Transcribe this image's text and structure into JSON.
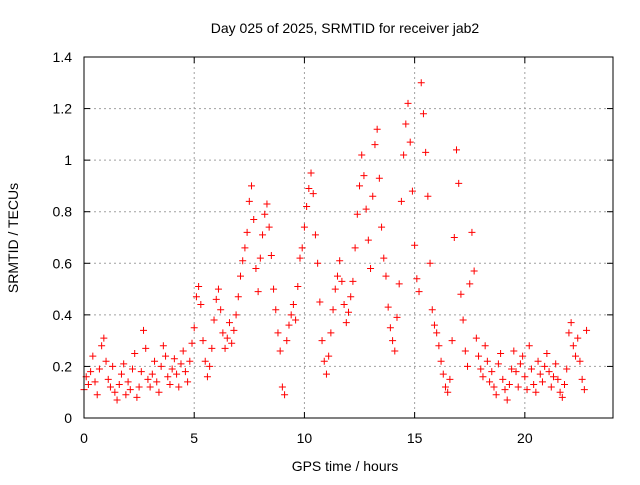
{
  "chart_data": {
    "type": "scatter",
    "title": "Day 025 of 2025, SRMTID for receiver jab2",
    "xlabel": "GPS time / hours",
    "ylabel": "SRMTID / TECUs",
    "xlim": [
      0,
      24
    ],
    "ylim": [
      0,
      1.4
    ],
    "xticks": [
      0,
      5,
      10,
      15,
      20
    ],
    "xtick_labels": [
      "0",
      "5",
      "10",
      "15",
      "20"
    ],
    "yticks": [
      0,
      0.2,
      0.4,
      0.6,
      0.8,
      1.0,
      1.2,
      1.4
    ],
    "ytick_labels": [
      "0",
      "0.2",
      "0.4",
      "0.6",
      "0.8",
      "1",
      "1.2",
      "1.4"
    ],
    "grid": true,
    "marker": "+",
    "color": "#ff0000",
    "series": [
      {
        "name": "SRMTID",
        "points": [
          [
            0.0,
            0.11
          ],
          [
            0.1,
            0.16
          ],
          [
            0.2,
            0.13
          ],
          [
            0.3,
            0.18
          ],
          [
            0.4,
            0.24
          ],
          [
            0.5,
            0.14
          ],
          [
            0.6,
            0.09
          ],
          [
            0.7,
            0.19
          ],
          [
            0.8,
            0.28
          ],
          [
            0.9,
            0.31
          ],
          [
            1.0,
            0.22
          ],
          [
            1.1,
            0.15
          ],
          [
            1.2,
            0.12
          ],
          [
            1.3,
            0.2
          ],
          [
            1.4,
            0.1
          ],
          [
            1.5,
            0.07
          ],
          [
            1.6,
            0.13
          ],
          [
            1.7,
            0.17
          ],
          [
            1.8,
            0.21
          ],
          [
            1.9,
            0.09
          ],
          [
            2.0,
            0.14
          ],
          [
            2.1,
            0.11
          ],
          [
            2.2,
            0.19
          ],
          [
            2.3,
            0.25
          ],
          [
            2.4,
            0.08
          ],
          [
            2.5,
            0.12
          ],
          [
            2.6,
            0.18
          ],
          [
            2.7,
            0.34
          ],
          [
            2.8,
            0.27
          ],
          [
            2.9,
            0.15
          ],
          [
            3.0,
            0.12
          ],
          [
            3.1,
            0.17
          ],
          [
            3.2,
            0.22
          ],
          [
            3.3,
            0.14
          ],
          [
            3.4,
            0.1
          ],
          [
            3.5,
            0.2
          ],
          [
            3.6,
            0.28
          ],
          [
            3.7,
            0.24
          ],
          [
            3.8,
            0.16
          ],
          [
            3.9,
            0.13
          ],
          [
            4.0,
            0.19
          ],
          [
            4.1,
            0.23
          ],
          [
            4.2,
            0.17
          ],
          [
            4.3,
            0.12
          ],
          [
            4.4,
            0.21
          ],
          [
            4.5,
            0.26
          ],
          [
            4.6,
            0.18
          ],
          [
            4.7,
            0.14
          ],
          [
            4.8,
            0.22
          ],
          [
            4.9,
            0.29
          ],
          [
            5.0,
            0.35
          ],
          [
            5.1,
            0.47
          ],
          [
            5.2,
            0.51
          ],
          [
            5.3,
            0.44
          ],
          [
            5.4,
            0.3
          ],
          [
            5.5,
            0.22
          ],
          [
            5.6,
            0.16
          ],
          [
            5.7,
            0.2
          ],
          [
            5.8,
            0.27
          ],
          [
            5.9,
            0.38
          ],
          [
            6.0,
            0.46
          ],
          [
            6.1,
            0.5
          ],
          [
            6.2,
            0.42
          ],
          [
            6.3,
            0.33
          ],
          [
            6.4,
            0.27
          ],
          [
            6.5,
            0.31
          ],
          [
            6.6,
            0.37
          ],
          [
            6.7,
            0.29
          ],
          [
            6.8,
            0.34
          ],
          [
            6.9,
            0.4
          ],
          [
            7.0,
            0.47
          ],
          [
            7.1,
            0.55
          ],
          [
            7.2,
            0.61
          ],
          [
            7.3,
            0.66
          ],
          [
            7.4,
            0.72
          ],
          [
            7.5,
            0.84
          ],
          [
            7.6,
            0.9
          ],
          [
            7.7,
            0.77
          ],
          [
            7.8,
            0.58
          ],
          [
            7.9,
            0.49
          ],
          [
            8.0,
            0.62
          ],
          [
            8.1,
            0.71
          ],
          [
            8.2,
            0.79
          ],
          [
            8.3,
            0.83
          ],
          [
            8.4,
            0.74
          ],
          [
            8.5,
            0.63
          ],
          [
            8.6,
            0.5
          ],
          [
            8.7,
            0.42
          ],
          [
            8.8,
            0.33
          ],
          [
            8.9,
            0.26
          ],
          [
            9.0,
            0.12
          ],
          [
            9.1,
            0.09
          ],
          [
            9.2,
            0.3
          ],
          [
            9.3,
            0.36
          ],
          [
            9.4,
            0.4
          ],
          [
            9.5,
            0.44
          ],
          [
            9.6,
            0.38
          ],
          [
            9.7,
            0.51
          ],
          [
            9.8,
            0.62
          ],
          [
            9.9,
            0.66
          ],
          [
            10.0,
            0.74
          ],
          [
            10.1,
            0.82
          ],
          [
            10.2,
            0.89
          ],
          [
            10.3,
            0.95
          ],
          [
            10.4,
            0.87
          ],
          [
            10.5,
            0.71
          ],
          [
            10.6,
            0.6
          ],
          [
            10.7,
            0.45
          ],
          [
            10.8,
            0.3
          ],
          [
            10.9,
            0.22
          ],
          [
            11.0,
            0.17
          ],
          [
            11.1,
            0.24
          ],
          [
            11.2,
            0.33
          ],
          [
            11.3,
            0.42
          ],
          [
            11.4,
            0.5
          ],
          [
            11.5,
            0.55
          ],
          [
            11.6,
            0.61
          ],
          [
            11.7,
            0.53
          ],
          [
            11.8,
            0.44
          ],
          [
            11.9,
            0.37
          ],
          [
            12.0,
            0.41
          ],
          [
            12.1,
            0.47
          ],
          [
            12.2,
            0.53
          ],
          [
            12.3,
            0.66
          ],
          [
            12.4,
            0.79
          ],
          [
            12.5,
            0.9
          ],
          [
            12.6,
            1.02
          ],
          [
            12.7,
            0.94
          ],
          [
            12.8,
            0.81
          ],
          [
            12.9,
            0.69
          ],
          [
            13.0,
            0.58
          ],
          [
            13.1,
            0.86
          ],
          [
            13.2,
            1.06
          ],
          [
            13.3,
            1.12
          ],
          [
            13.4,
            0.93
          ],
          [
            13.5,
            0.74
          ],
          [
            13.6,
            0.62
          ],
          [
            13.7,
            0.55
          ],
          [
            13.8,
            0.43
          ],
          [
            13.9,
            0.35
          ],
          [
            14.0,
            0.3
          ],
          [
            14.1,
            0.26
          ],
          [
            14.2,
            0.39
          ],
          [
            14.3,
            0.52
          ],
          [
            14.4,
            0.84
          ],
          [
            14.5,
            1.02
          ],
          [
            14.6,
            1.14
          ],
          [
            14.7,
            1.22
          ],
          [
            14.8,
            1.07
          ],
          [
            14.9,
            0.88
          ],
          [
            15.0,
            0.67
          ],
          [
            15.1,
            0.54
          ],
          [
            15.2,
            0.49
          ],
          [
            15.3,
            1.3
          ],
          [
            15.4,
            1.18
          ],
          [
            15.5,
            1.03
          ],
          [
            15.6,
            0.86
          ],
          [
            15.7,
            0.6
          ],
          [
            15.8,
            0.42
          ],
          [
            15.9,
            0.36
          ],
          [
            16.0,
            0.33
          ],
          [
            16.1,
            0.28
          ],
          [
            16.2,
            0.22
          ],
          [
            16.3,
            0.17
          ],
          [
            16.4,
            0.12
          ],
          [
            16.5,
            0.1
          ],
          [
            16.6,
            0.15
          ],
          [
            16.7,
            0.3
          ],
          [
            16.8,
            0.7
          ],
          [
            16.9,
            1.04
          ],
          [
            17.0,
            0.91
          ],
          [
            17.1,
            0.48
          ],
          [
            17.2,
            0.38
          ],
          [
            17.3,
            0.26
          ],
          [
            17.4,
            0.2
          ],
          [
            17.5,
            0.52
          ],
          [
            17.6,
            0.72
          ],
          [
            17.7,
            0.57
          ],
          [
            17.8,
            0.31
          ],
          [
            17.9,
            0.24
          ],
          [
            18.0,
            0.19
          ],
          [
            18.1,
            0.16
          ],
          [
            18.2,
            0.28
          ],
          [
            18.3,
            0.22
          ],
          [
            18.4,
            0.14
          ],
          [
            18.5,
            0.18
          ],
          [
            18.6,
            0.12
          ],
          [
            18.7,
            0.09
          ],
          [
            18.8,
            0.21
          ],
          [
            18.9,
            0.25
          ],
          [
            19.0,
            0.15
          ],
          [
            19.1,
            0.11
          ],
          [
            19.2,
            0.07
          ],
          [
            19.3,
            0.13
          ],
          [
            19.4,
            0.19
          ],
          [
            19.5,
            0.26
          ],
          [
            19.6,
            0.18
          ],
          [
            19.7,
            0.12
          ],
          [
            19.8,
            0.21
          ],
          [
            19.9,
            0.24
          ],
          [
            20.0,
            0.16
          ],
          [
            20.1,
            0.11
          ],
          [
            20.2,
            0.28
          ],
          [
            20.3,
            0.19
          ],
          [
            20.4,
            0.13
          ],
          [
            20.5,
            0.1
          ],
          [
            20.6,
            0.22
          ],
          [
            20.7,
            0.17
          ],
          [
            20.8,
            0.14
          ],
          [
            20.9,
            0.2
          ],
          [
            21.0,
            0.25
          ],
          [
            21.1,
            0.18
          ],
          [
            21.2,
            0.12
          ],
          [
            21.3,
            0.16
          ],
          [
            21.4,
            0.21
          ],
          [
            21.5,
            0.15
          ],
          [
            21.6,
            0.1
          ],
          [
            21.7,
            0.08
          ],
          [
            21.8,
            0.13
          ],
          [
            21.9,
            0.19
          ],
          [
            22.0,
            0.33
          ],
          [
            22.1,
            0.37
          ],
          [
            22.2,
            0.28
          ],
          [
            22.3,
            0.24
          ],
          [
            22.4,
            0.31
          ],
          [
            22.5,
            0.22
          ],
          [
            22.6,
            0.15
          ],
          [
            22.7,
            0.11
          ],
          [
            22.8,
            0.34
          ]
        ]
      }
    ]
  }
}
